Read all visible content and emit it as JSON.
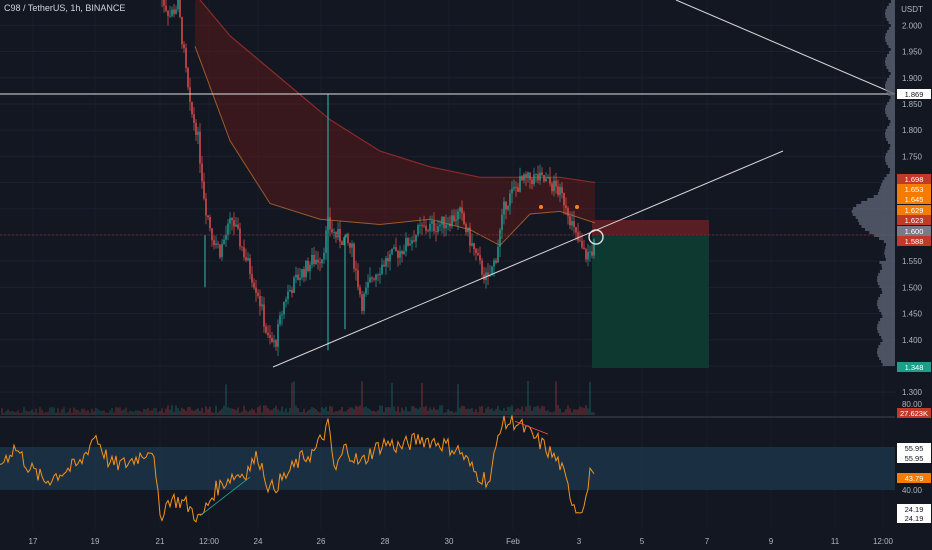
{
  "header": {
    "symbol_line": "C98 / TetherUS, 1h, BINANCE"
  },
  "currency_label": "USDT",
  "colors": {
    "background": "#131722",
    "up": "#26a69a",
    "down": "#ef5350",
    "ema_fill": "#5a1a1a",
    "rsi": "#f7931a",
    "rsi_band": "#1e3a4f",
    "target_zone": "#0d3b33",
    "stop_zone": "#5c1f24"
  },
  "chart_data": [
    {
      "type": "candlestick",
      "title": "",
      "ylim": [
        1.25,
        2.06
      ],
      "y_ticks": [
        "2.000",
        "1.950",
        "1.900",
        "1.850",
        "1.800",
        "1.750",
        "1.700",
        "1.650",
        "1.600",
        "1.550",
        "1.500",
        "1.450",
        "1.400",
        "1.350",
        "1.300"
      ],
      "x_ticks": [
        "17",
        "19",
        "21",
        "12:00",
        "24",
        "26",
        "28",
        "30",
        "Feb",
        "3",
        "5",
        "7",
        "9",
        "11",
        "12:00"
      ],
      "price_labels": [
        {
          "text": "1.869",
          "style": "line"
        },
        {
          "text": "1.698",
          "style": "red"
        },
        {
          "text": "1.653",
          "style": "orange"
        },
        {
          "text": "1.645",
          "style": "orange"
        },
        {
          "text": "1.629",
          "style": "orange"
        },
        {
          "text": "1.623",
          "style": "red"
        },
        {
          "text": "1.600",
          "style": "gray"
        },
        {
          "text": "1.588",
          "style": "red"
        },
        {
          "text": "1.348",
          "style": "teal"
        },
        {
          "text": "27.623K",
          "style": "red"
        }
      ],
      "horizontal_line_value": 1.869,
      "position_tool": {
        "entry": 1.588,
        "stop": 1.623,
        "target": 1.348
      },
      "trendline_support": {
        "from": [
          1.346,
          "24"
        ],
        "to": [
          1.763,
          "8"
        ]
      },
      "trendline_resistance": {
        "from": [
          2.06,
          "7"
        ],
        "to": [
          1.87,
          "12:00"
        ]
      },
      "close_approx": [
        1.565,
        1.6,
        1.588
      ]
    },
    {
      "type": "line",
      "title": "",
      "ylim": [
        20,
        82
      ],
      "y_ticks": [
        "80.00",
        "40.00"
      ],
      "band": [
        40,
        60
      ],
      "value_labels": [
        "55.95",
        "55.95",
        "43.79",
        "24.19",
        "24.19"
      ]
    }
  ]
}
